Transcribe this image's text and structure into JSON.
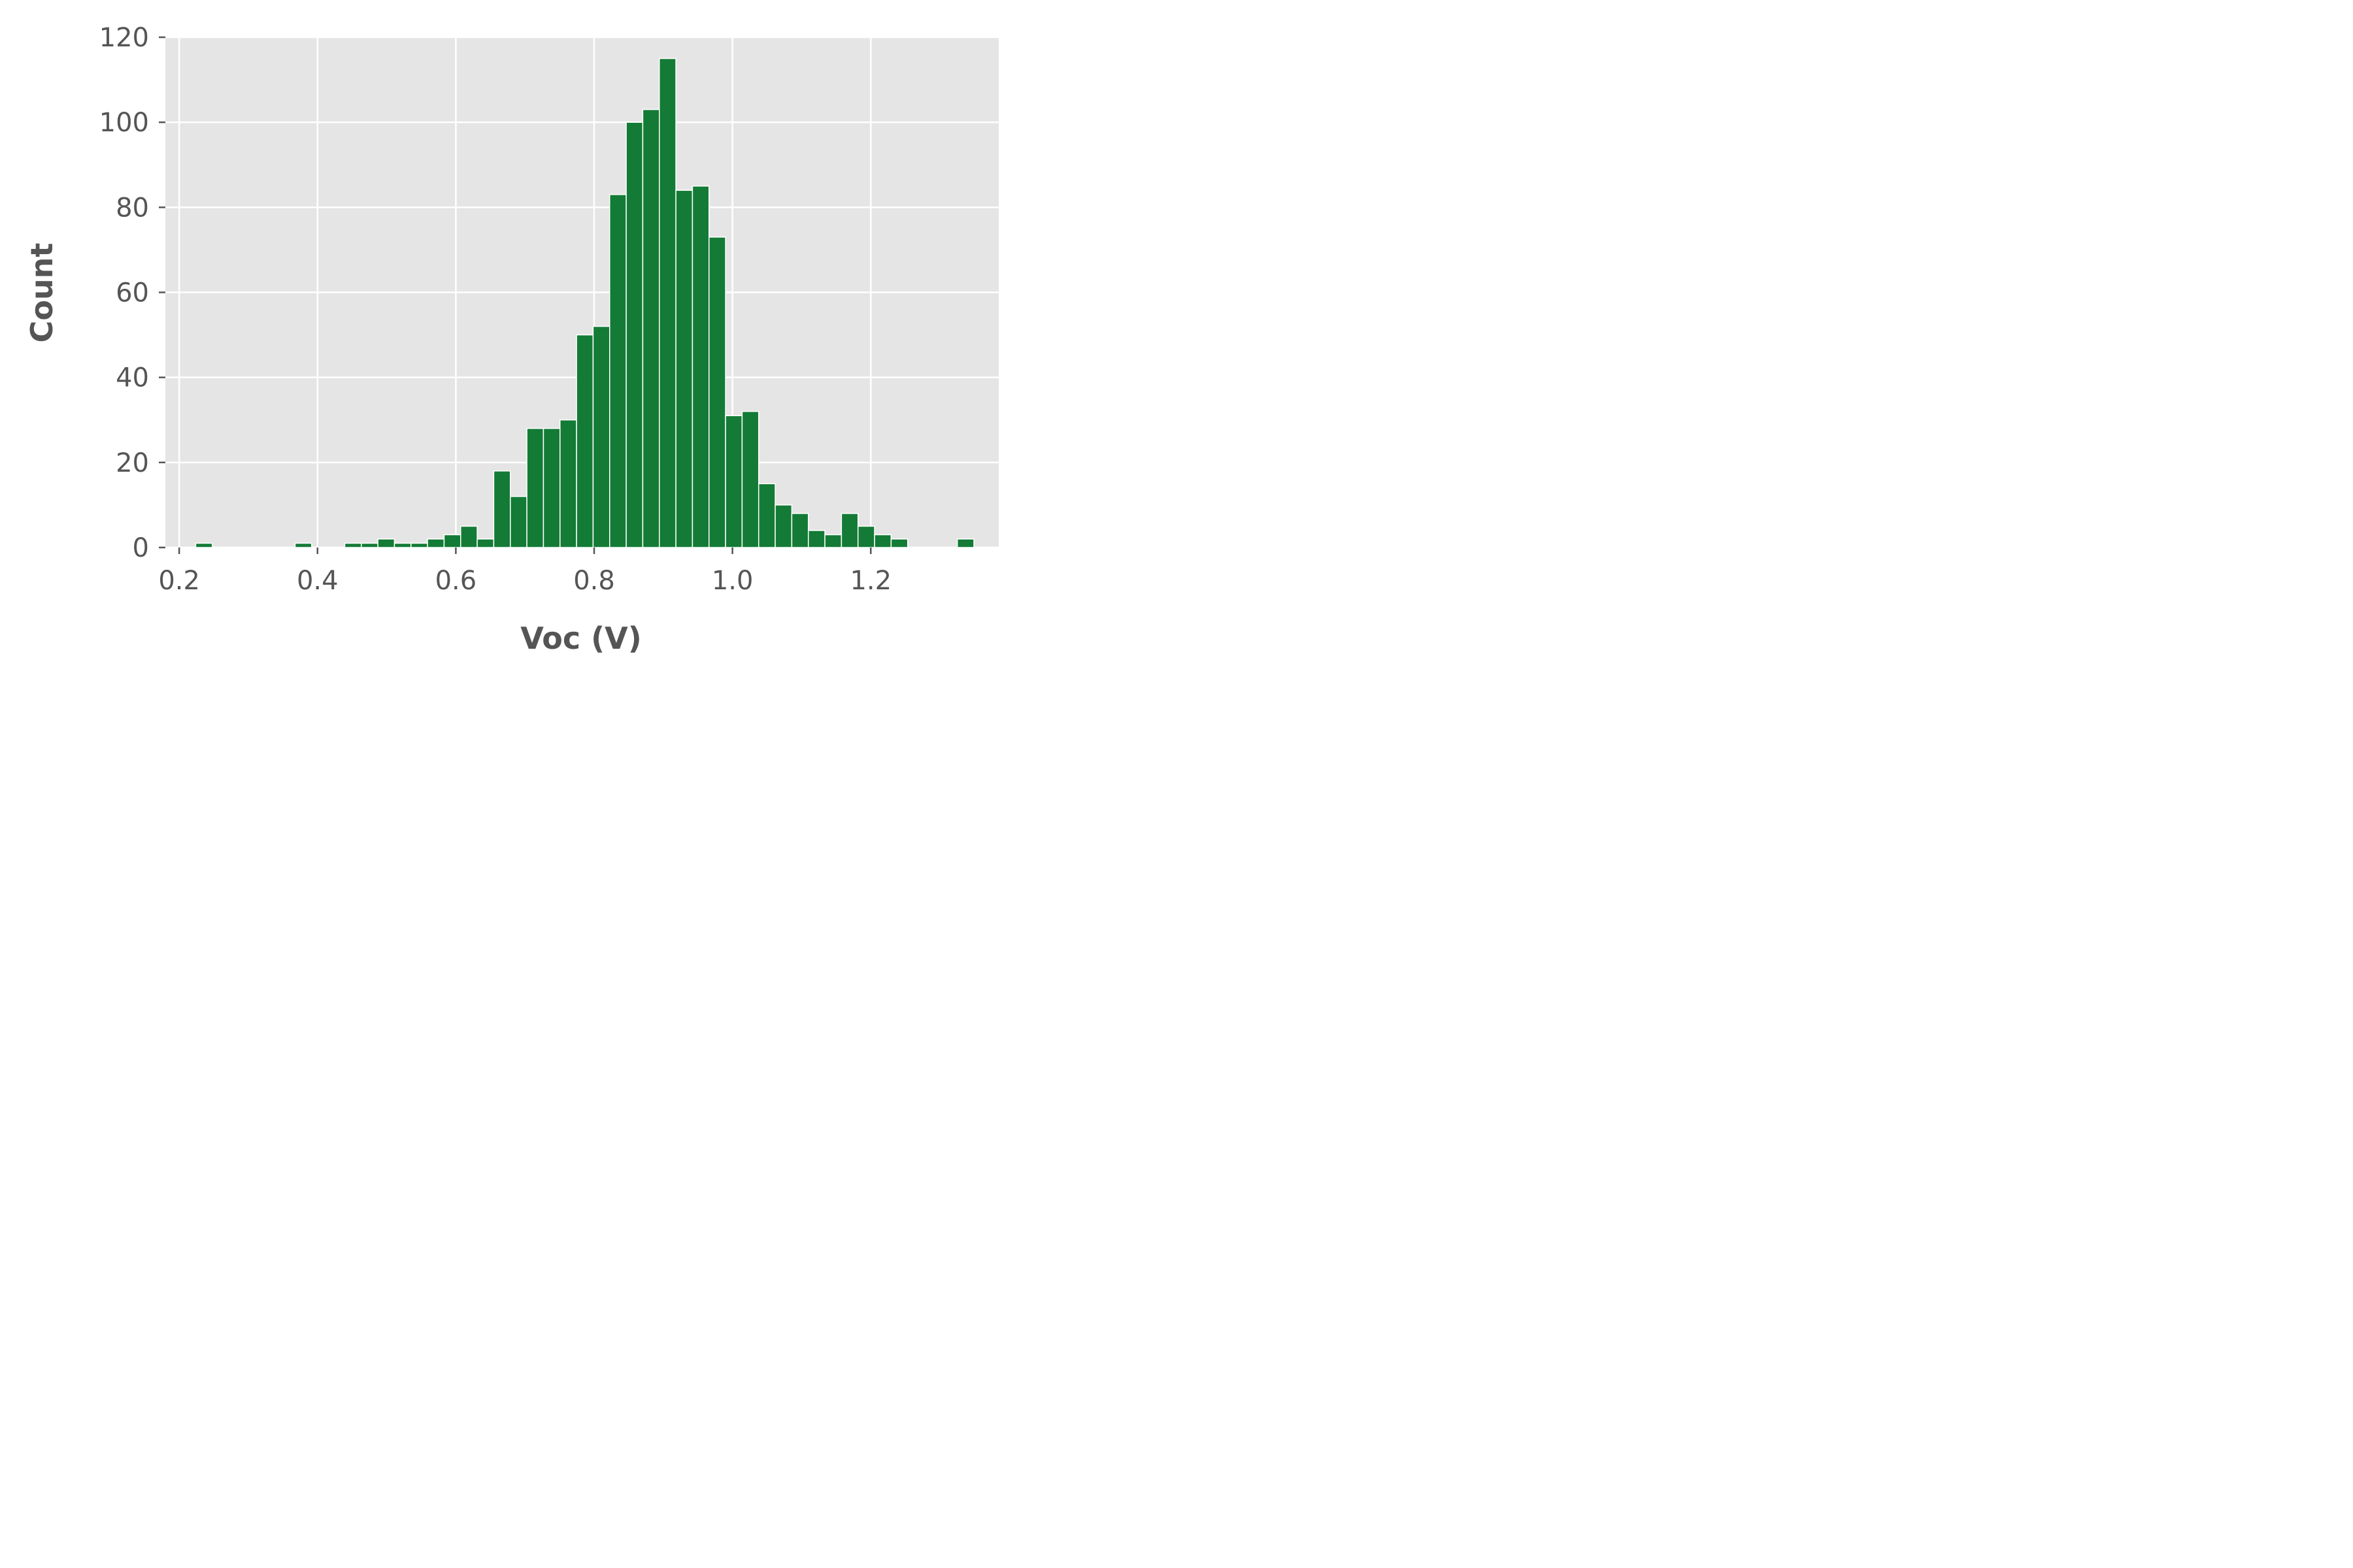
{
  "chart_data": {
    "type": "bar",
    "title": "",
    "xlabel": "Voc (V)",
    "ylabel": "Count",
    "xlim": [
      0.18,
      1.385
    ],
    "ylim": [
      0,
      120
    ],
    "xticks": [
      0.2,
      0.4,
      0.6,
      0.8,
      1.0,
      1.2
    ],
    "xtick_labels": [
      "0.2",
      "0.4",
      "0.6",
      "0.8",
      "1.0",
      "1.2"
    ],
    "yticks": [
      0,
      20,
      40,
      60,
      80,
      100,
      120
    ],
    "ytick_labels": [
      "0",
      "20",
      "40",
      "60",
      "80",
      "100",
      "120"
    ],
    "grid": true,
    "legend": "none",
    "colors": {
      "bar": "#137b35",
      "plot_background": "#e5e5e5",
      "grid": "#ffffff",
      "text": "#555555"
    },
    "bins": {
      "start": 0.2,
      "width": 0.02394,
      "counts": [
        0,
        1,
        0,
        0,
        0,
        0,
        0,
        1,
        0,
        0,
        1,
        1,
        2,
        1,
        1,
        2,
        3,
        5,
        2,
        18,
        12,
        28,
        28,
        30,
        50,
        52,
        83,
        100,
        103,
        115,
        84,
        85,
        73,
        31,
        32,
        15,
        10,
        8,
        4,
        3,
        8,
        5,
        3,
        2,
        0,
        0,
        0,
        2
      ]
    }
  }
}
